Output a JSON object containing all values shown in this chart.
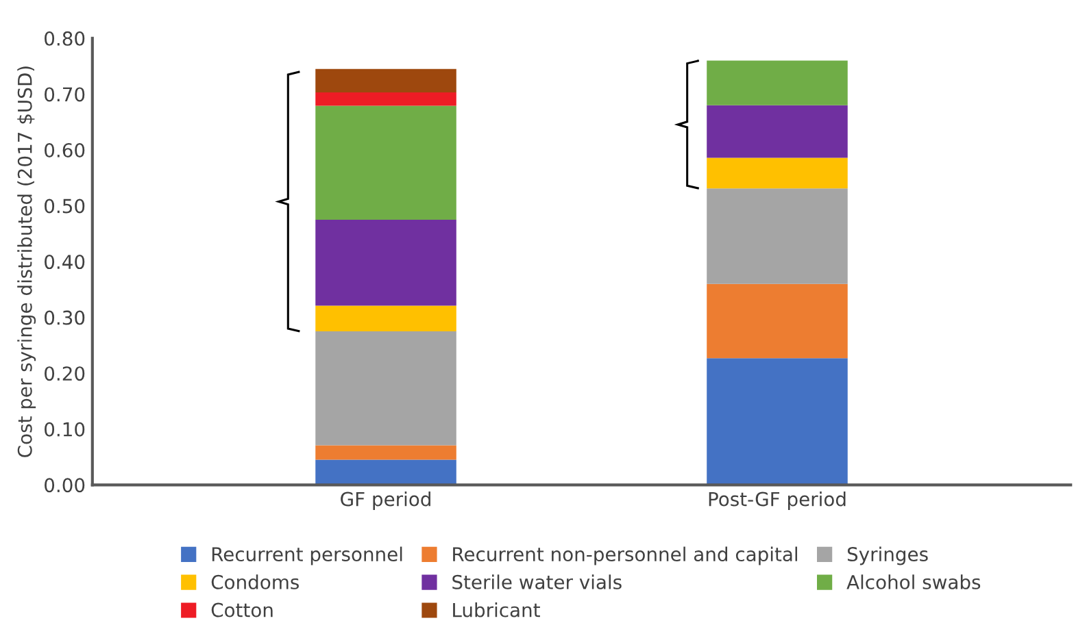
{
  "chart_data": {
    "type": "bar",
    "stacked": true,
    "ylabel": "Cost per syringe distributed (2017 $USD)",
    "categories": [
      "GF period",
      "Post-GF period"
    ],
    "series": [
      {
        "name": "Recurrent personnel",
        "color": "#4472c4",
        "values": [
          0.045,
          0.227
        ]
      },
      {
        "name": "Recurrent non-personnel and capital",
        "color": "#ed7d31",
        "values": [
          0.026,
          0.133
        ]
      },
      {
        "name": "Syringes",
        "color": "#a5a5a5",
        "values": [
          0.204,
          0.171
        ]
      },
      {
        "name": "Condoms",
        "color": "#ffc000",
        "values": [
          0.046,
          0.055
        ]
      },
      {
        "name": "Sterile water vials",
        "color": "#7030a0",
        "values": [
          0.154,
          0.094
        ]
      },
      {
        "name": "Alcohol swabs",
        "color": "#70ad47",
        "values": [
          0.204,
          0.08
        ]
      },
      {
        "name": "Cotton",
        "color": "#ee1c25",
        "values": [
          0.024,
          0
        ]
      },
      {
        "name": "Lubricant",
        "color": "#9e480e",
        "values": [
          0.042,
          0
        ]
      }
    ],
    "ylim": [
      0,
      0.8
    ],
    "yticks": [
      {
        "value": 0,
        "label": "0.00"
      },
      {
        "value": 0.1,
        "label": "0.10"
      },
      {
        "value": 0.2,
        "label": "0.20"
      },
      {
        "value": 0.3,
        "label": "0.30"
      },
      {
        "value": 0.4,
        "label": "0.40"
      },
      {
        "value": 0.5,
        "label": "0.50"
      },
      {
        "value": 0.6,
        "label": "0.60"
      },
      {
        "value": 0.7,
        "label": "0.70"
      },
      {
        "value": 0.8,
        "label": "0.80"
      }
    ],
    "grid": false,
    "legend": "bottom"
  }
}
